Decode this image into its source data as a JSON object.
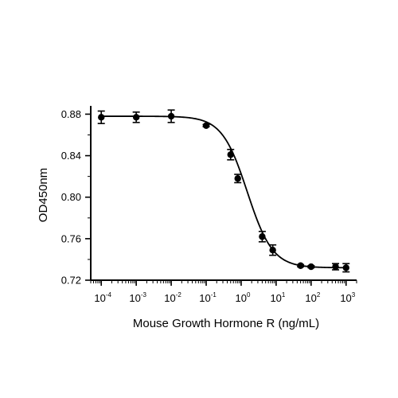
{
  "chart_data": {
    "type": "scatter",
    "xlabel": "Mouse Growth Hormone R (ng/mL)",
    "ylabel": "OD450nm",
    "x_scale": "log",
    "xlim": [
      5e-05,
      2000
    ],
    "ylim": [
      0.72,
      0.888
    ],
    "x_tick_labels": [
      {
        "base": "10",
        "exp": "-4"
      },
      {
        "base": "10",
        "exp": "-3"
      },
      {
        "base": "10",
        "exp": "-2"
      },
      {
        "base": "10",
        "exp": "-1"
      },
      {
        "base": "10",
        "exp": "0"
      },
      {
        "base": "10",
        "exp": "1"
      },
      {
        "base": "10",
        "exp": "2"
      },
      {
        "base": "10",
        "exp": "3"
      }
    ],
    "x_tick_values": [
      0.0001,
      0.001,
      0.01,
      0.1,
      1,
      10,
      100,
      1000
    ],
    "y_ticks": [
      "0.72",
      "0.76",
      "0.80",
      "0.84",
      "0.88"
    ],
    "y_tick_values": [
      0.72,
      0.76,
      0.8,
      0.84,
      0.88
    ],
    "grid": false,
    "series": [
      {
        "points": [
          {
            "x": 0.0001,
            "y": 0.877,
            "err": 0.006
          },
          {
            "x": 0.001,
            "y": 0.877,
            "err": 0.005
          },
          {
            "x": 0.01,
            "y": 0.878,
            "err": 0.006
          },
          {
            "x": 0.1,
            "y": 0.869,
            "err": 0.001
          },
          {
            "x": 0.5,
            "y": 0.841,
            "err": 0.005
          },
          {
            "x": 0.8,
            "y": 0.818,
            "err": 0.004
          },
          {
            "x": 4,
            "y": 0.762,
            "err": 0.005
          },
          {
            "x": 8,
            "y": 0.749,
            "err": 0.005
          },
          {
            "x": 50,
            "y": 0.734,
            "err": 0.001
          },
          {
            "x": 100,
            "y": 0.733,
            "err": 0.001
          },
          {
            "x": 500,
            "y": 0.733,
            "err": 0.003
          },
          {
            "x": 1000,
            "y": 0.732,
            "err": 0.004
          }
        ],
        "fit": {
          "model": "4PL",
          "top": 0.878,
          "bottom": 0.732,
          "ec50": 1.5,
          "hill": 1.2
        }
      }
    ]
  }
}
